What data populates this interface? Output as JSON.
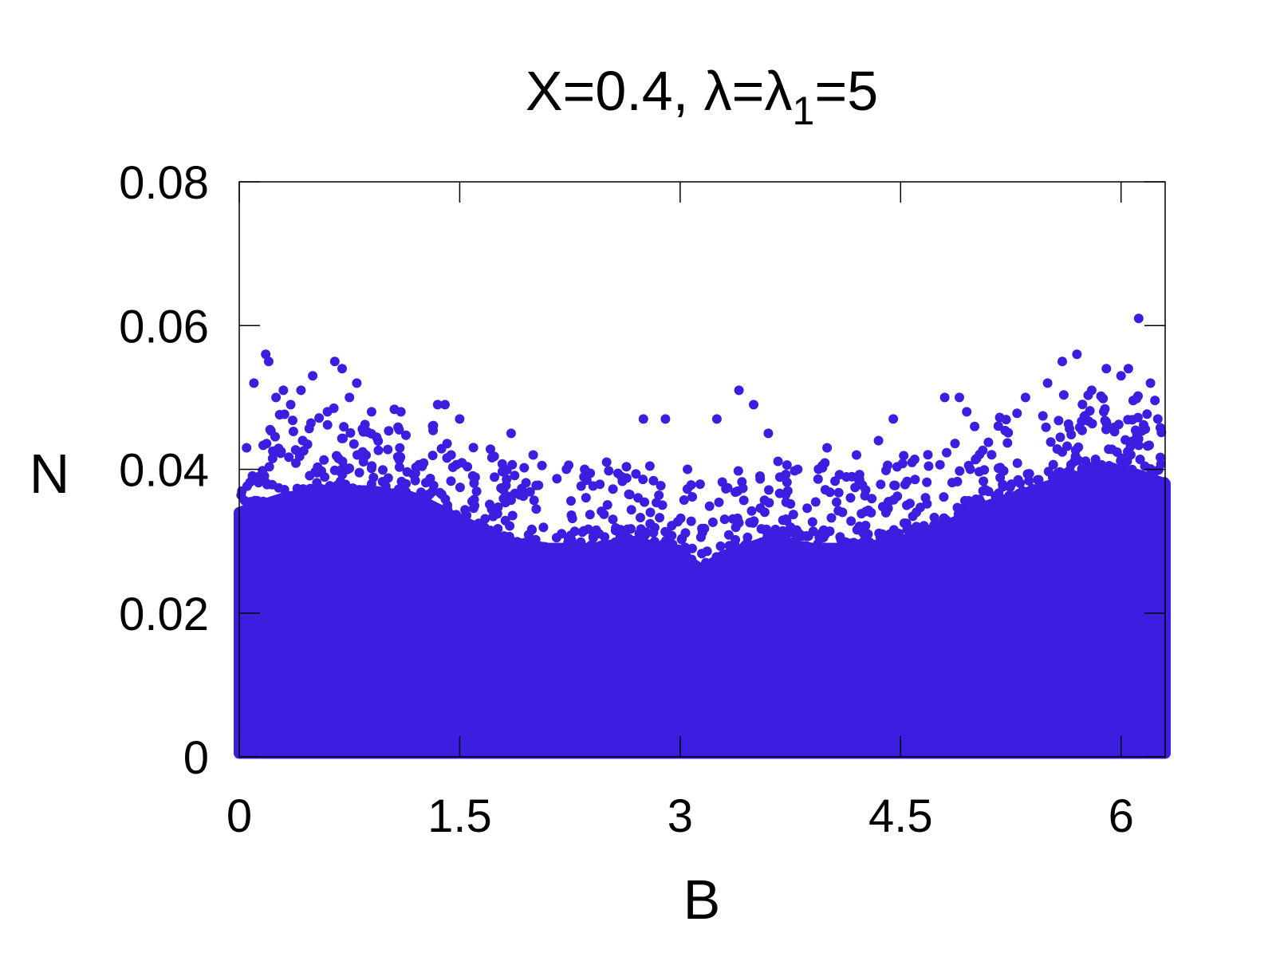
{
  "chart_data": {
    "type": "scatter",
    "title_parts": {
      "pre": "X=0.4, λ=λ",
      "sub": "1",
      "post": "=5"
    },
    "xlabel": "B",
    "ylabel": "N",
    "xlim": [
      0,
      6.3
    ],
    "ylim": [
      0,
      0.08
    ],
    "xticks": [
      "0",
      "1.5",
      "3",
      "4.5",
      "6"
    ],
    "xtick_values": [
      0,
      1.5,
      3,
      4.5,
      6
    ],
    "yticks": [
      "0",
      "0.02",
      "0.04",
      "0.06",
      "0.08"
    ],
    "ytick_values": [
      0,
      0.02,
      0.04,
      0.06,
      0.08
    ],
    "grid": false,
    "legend": "none",
    "marker_color": "#3c1ee0",
    "series": [
      {
        "envelope_dense": [
          [
            0.0,
            0.034
          ],
          [
            0.3,
            0.036
          ],
          [
            0.6,
            0.037
          ],
          [
            0.9,
            0.037
          ],
          [
            1.2,
            0.036
          ],
          [
            1.5,
            0.033
          ],
          [
            1.8,
            0.03
          ],
          [
            2.1,
            0.029
          ],
          [
            2.4,
            0.029
          ],
          [
            2.7,
            0.03
          ],
          [
            3.0,
            0.028
          ],
          [
            3.15,
            0.026
          ],
          [
            3.3,
            0.028
          ],
          [
            3.6,
            0.03
          ],
          [
            3.9,
            0.029
          ],
          [
            4.2,
            0.029
          ],
          [
            4.5,
            0.03
          ],
          [
            4.8,
            0.032
          ],
          [
            5.1,
            0.035
          ],
          [
            5.4,
            0.037
          ],
          [
            5.7,
            0.039
          ],
          [
            6.0,
            0.04
          ],
          [
            6.3,
            0.038
          ]
        ],
        "outliers": [
          [
            0.05,
            0.043
          ],
          [
            0.1,
            0.052
          ],
          [
            0.18,
            0.056
          ],
          [
            0.2,
            0.055
          ],
          [
            0.25,
            0.05
          ],
          [
            0.3,
            0.051
          ],
          [
            0.35,
            0.049
          ],
          [
            0.42,
            0.051
          ],
          [
            0.5,
            0.053
          ],
          [
            0.6,
            0.048
          ],
          [
            0.65,
            0.055
          ],
          [
            0.7,
            0.054
          ],
          [
            0.75,
            0.05
          ],
          [
            0.8,
            0.052
          ],
          [
            0.9,
            0.048
          ],
          [
            1.1,
            0.048
          ],
          [
            1.35,
            0.049
          ],
          [
            1.4,
            0.049
          ],
          [
            1.5,
            0.047
          ],
          [
            1.85,
            0.045
          ],
          [
            2.0,
            0.042
          ],
          [
            2.35,
            0.04
          ],
          [
            2.5,
            0.041
          ],
          [
            2.75,
            0.047
          ],
          [
            2.9,
            0.047
          ],
          [
            3.05,
            0.04
          ],
          [
            3.25,
            0.047
          ],
          [
            3.4,
            0.051
          ],
          [
            3.5,
            0.049
          ],
          [
            3.6,
            0.045
          ],
          [
            3.8,
            0.04
          ],
          [
            4.0,
            0.043
          ],
          [
            4.2,
            0.042
          ],
          [
            4.35,
            0.044
          ],
          [
            4.45,
            0.047
          ],
          [
            4.8,
            0.05
          ],
          [
            4.9,
            0.05
          ],
          [
            4.95,
            0.048
          ],
          [
            5.35,
            0.05
          ],
          [
            5.5,
            0.052
          ],
          [
            5.6,
            0.055
          ],
          [
            5.7,
            0.056
          ],
          [
            5.8,
            0.051
          ],
          [
            5.9,
            0.054
          ],
          [
            6.0,
            0.053
          ],
          [
            6.05,
            0.054
          ],
          [
            6.12,
            0.061
          ],
          [
            6.2,
            0.052
          ],
          [
            6.25,
            0.047
          ]
        ]
      }
    ]
  }
}
